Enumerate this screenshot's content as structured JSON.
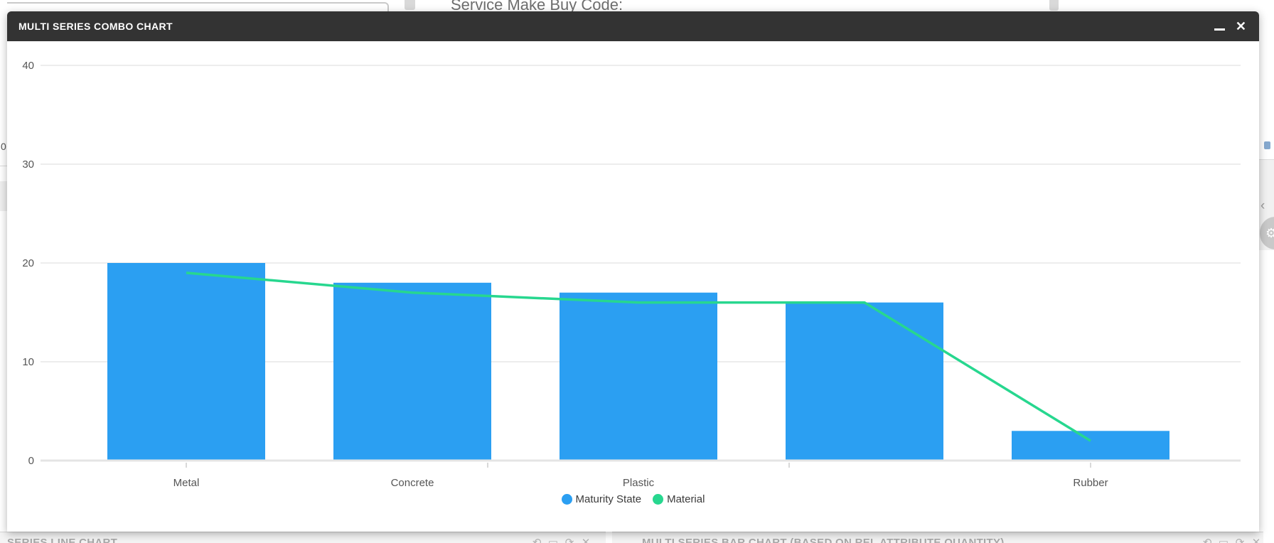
{
  "window": {
    "title": "MULTI SERIES COMBO CHART",
    "close_icon": "✕"
  },
  "chart_data": {
    "type": "combo",
    "categories": [
      "Metal",
      "Concrete",
      "Plastic",
      "",
      "Rubber"
    ],
    "series": [
      {
        "name": "Maturity State",
        "type": "bar",
        "color": "#2b9ff2",
        "values": [
          20,
          18,
          17,
          16,
          3
        ]
      },
      {
        "name": "Material",
        "type": "line",
        "color": "#27d78f",
        "values": [
          19,
          17,
          16,
          16,
          2
        ]
      }
    ],
    "title": "",
    "xlabel": "",
    "ylabel": "",
    "ylim": [
      0,
      40
    ],
    "yticks": [
      0,
      10,
      20,
      30,
      40
    ],
    "grid": true,
    "legend_position": "bottom"
  },
  "background": {
    "top_label": "Service Make Buy Code:",
    "left_fragment": "0",
    "chevron_icon": "‹",
    "gear_icon": "⚙",
    "panels": [
      {
        "title": "SERIES LINE CHART"
      },
      {
        "title": "MULTI SERIES BAR CHART (BASED ON REL ATTRIBUTE QUANTITY)"
      }
    ],
    "panel_icons": [
      {
        "name": "history-icon",
        "glyph": "⟲"
      },
      {
        "name": "window-icon",
        "glyph": "▭"
      },
      {
        "name": "refresh-icon",
        "glyph": "⟳"
      },
      {
        "name": "close-icon",
        "glyph": "✕"
      }
    ]
  }
}
